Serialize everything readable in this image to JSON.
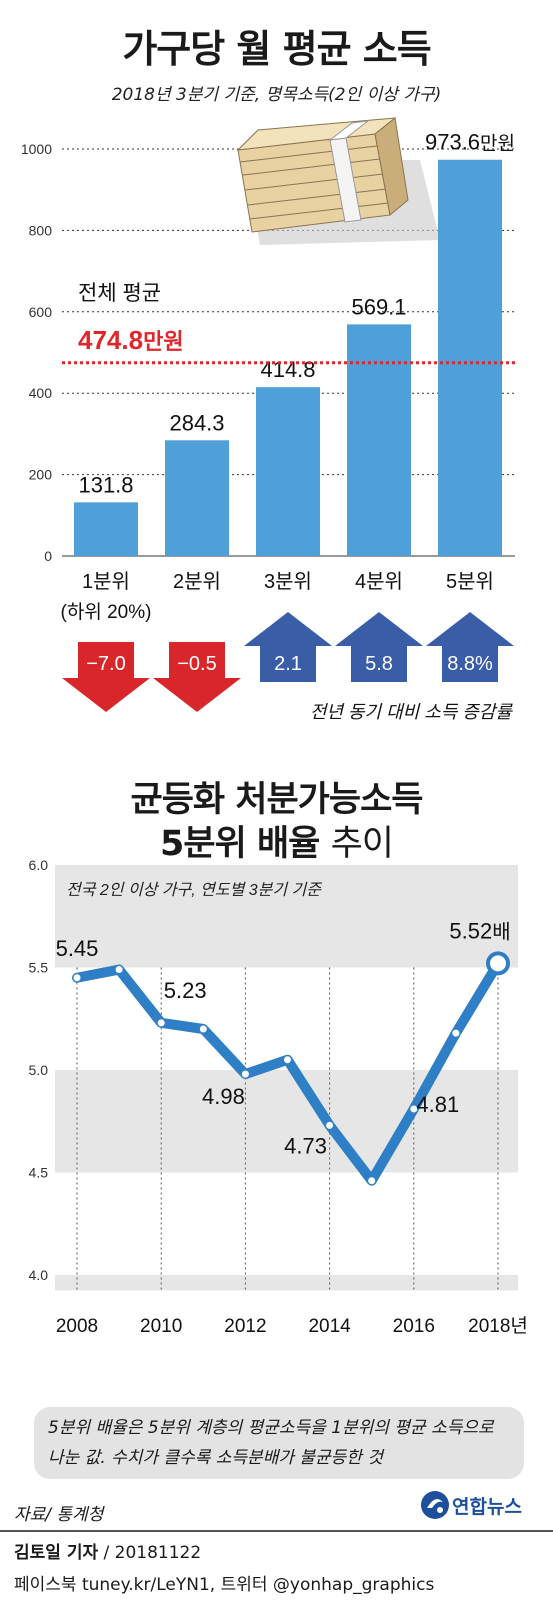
{
  "header": {
    "title": "가구당 월 평균 소득",
    "subtitle": "2018년 3분기 기준, 명목소득(2인 이상 가구)"
  },
  "colors": {
    "bar": "#4f9fd9",
    "average_line": "#e0262a",
    "down_arrow": "#d9262b",
    "up_arrow": "#3a5da8",
    "line_series": "#2e7fc5",
    "band": "#e6e6e6"
  },
  "icons": {
    "money": "money-stack-icon",
    "logo": "yonhap-logo-icon"
  },
  "chart_data": [
    {
      "type": "bar",
      "title": "가구당 월 평균 소득",
      "subtitle": "2018년 3분기 기준, 명목소득(2인 이상 가구)",
      "categories": [
        "1분위",
        "2분위",
        "3분위",
        "4분위",
        "5분위"
      ],
      "category_note": "(하위 20%)",
      "values": [
        131.8,
        284.3,
        414.8,
        569.1,
        973.6
      ],
      "value_labels": [
        "131.8",
        "284.3",
        "414.8",
        "569.1",
        "973.6"
      ],
      "last_value_unit": "만원",
      "ylim": [
        0,
        1050
      ],
      "yticks": [
        0,
        200,
        400,
        600,
        800,
        1000
      ],
      "average": {
        "label": "전체 평균",
        "value": 474.8,
        "value_label": "474.8",
        "unit": "만원"
      },
      "changes": {
        "label": "전년 동기 대비 소득 증감률",
        "values": [
          -7.0,
          -0.5,
          2.1,
          5.8,
          8.8
        ],
        "labels": [
          "−7.0",
          "−0.5",
          "2.1",
          "5.8",
          "8.8%"
        ]
      }
    },
    {
      "type": "line",
      "title": "균등화 처분가능소득 5분위 배율 추이",
      "title_lines": [
        "균등화 처분가능소득",
        "5분위 배율",
        "추이"
      ],
      "subtitle": "전국 2인 이상 가구, 연도별 3분기 기준",
      "x": [
        2008,
        2009,
        2010,
        2011,
        2012,
        2013,
        2014,
        2015,
        2016,
        2017,
        2018
      ],
      "values": [
        5.45,
        5.49,
        5.23,
        5.2,
        4.98,
        5.05,
        4.73,
        4.46,
        4.81,
        5.18,
        5.52
      ],
      "xtick_labels": [
        "2008",
        "2010",
        "2012",
        "2014",
        "2016",
        "2018년"
      ],
      "xticks": [
        2008,
        2010,
        2012,
        2014,
        2016,
        2018
      ],
      "ylim": [
        4.0,
        6.0
      ],
      "yticks": [
        "4.0",
        "4.5",
        "5.0",
        "5.5",
        "6.0"
      ],
      "data_labels": [
        {
          "year": 2008,
          "text": "5.45"
        },
        {
          "year": 2010,
          "text": "5.23"
        },
        {
          "year": 2012,
          "text": "4.98"
        },
        {
          "year": 2014,
          "text": "4.73"
        },
        {
          "year": 2016,
          "text": "4.81"
        },
        {
          "year": 2018,
          "text": "5.52",
          "unit": "배"
        }
      ],
      "note": "5분위 배율은 5분위 계층의 평균소득을 1분위의 평균 소득으로 나눈 값. 수치가 클수록 소득분배가 불균등한 것"
    }
  ],
  "footer": {
    "source": "자료/ 통계청",
    "reporter_name": "김토일 기자",
    "reporter_date": " / 20181122",
    "social": "페이스북 tuney.kr/LeYN1, 트위터 @yonhap_graphics",
    "logo_text": "연합뉴스"
  }
}
